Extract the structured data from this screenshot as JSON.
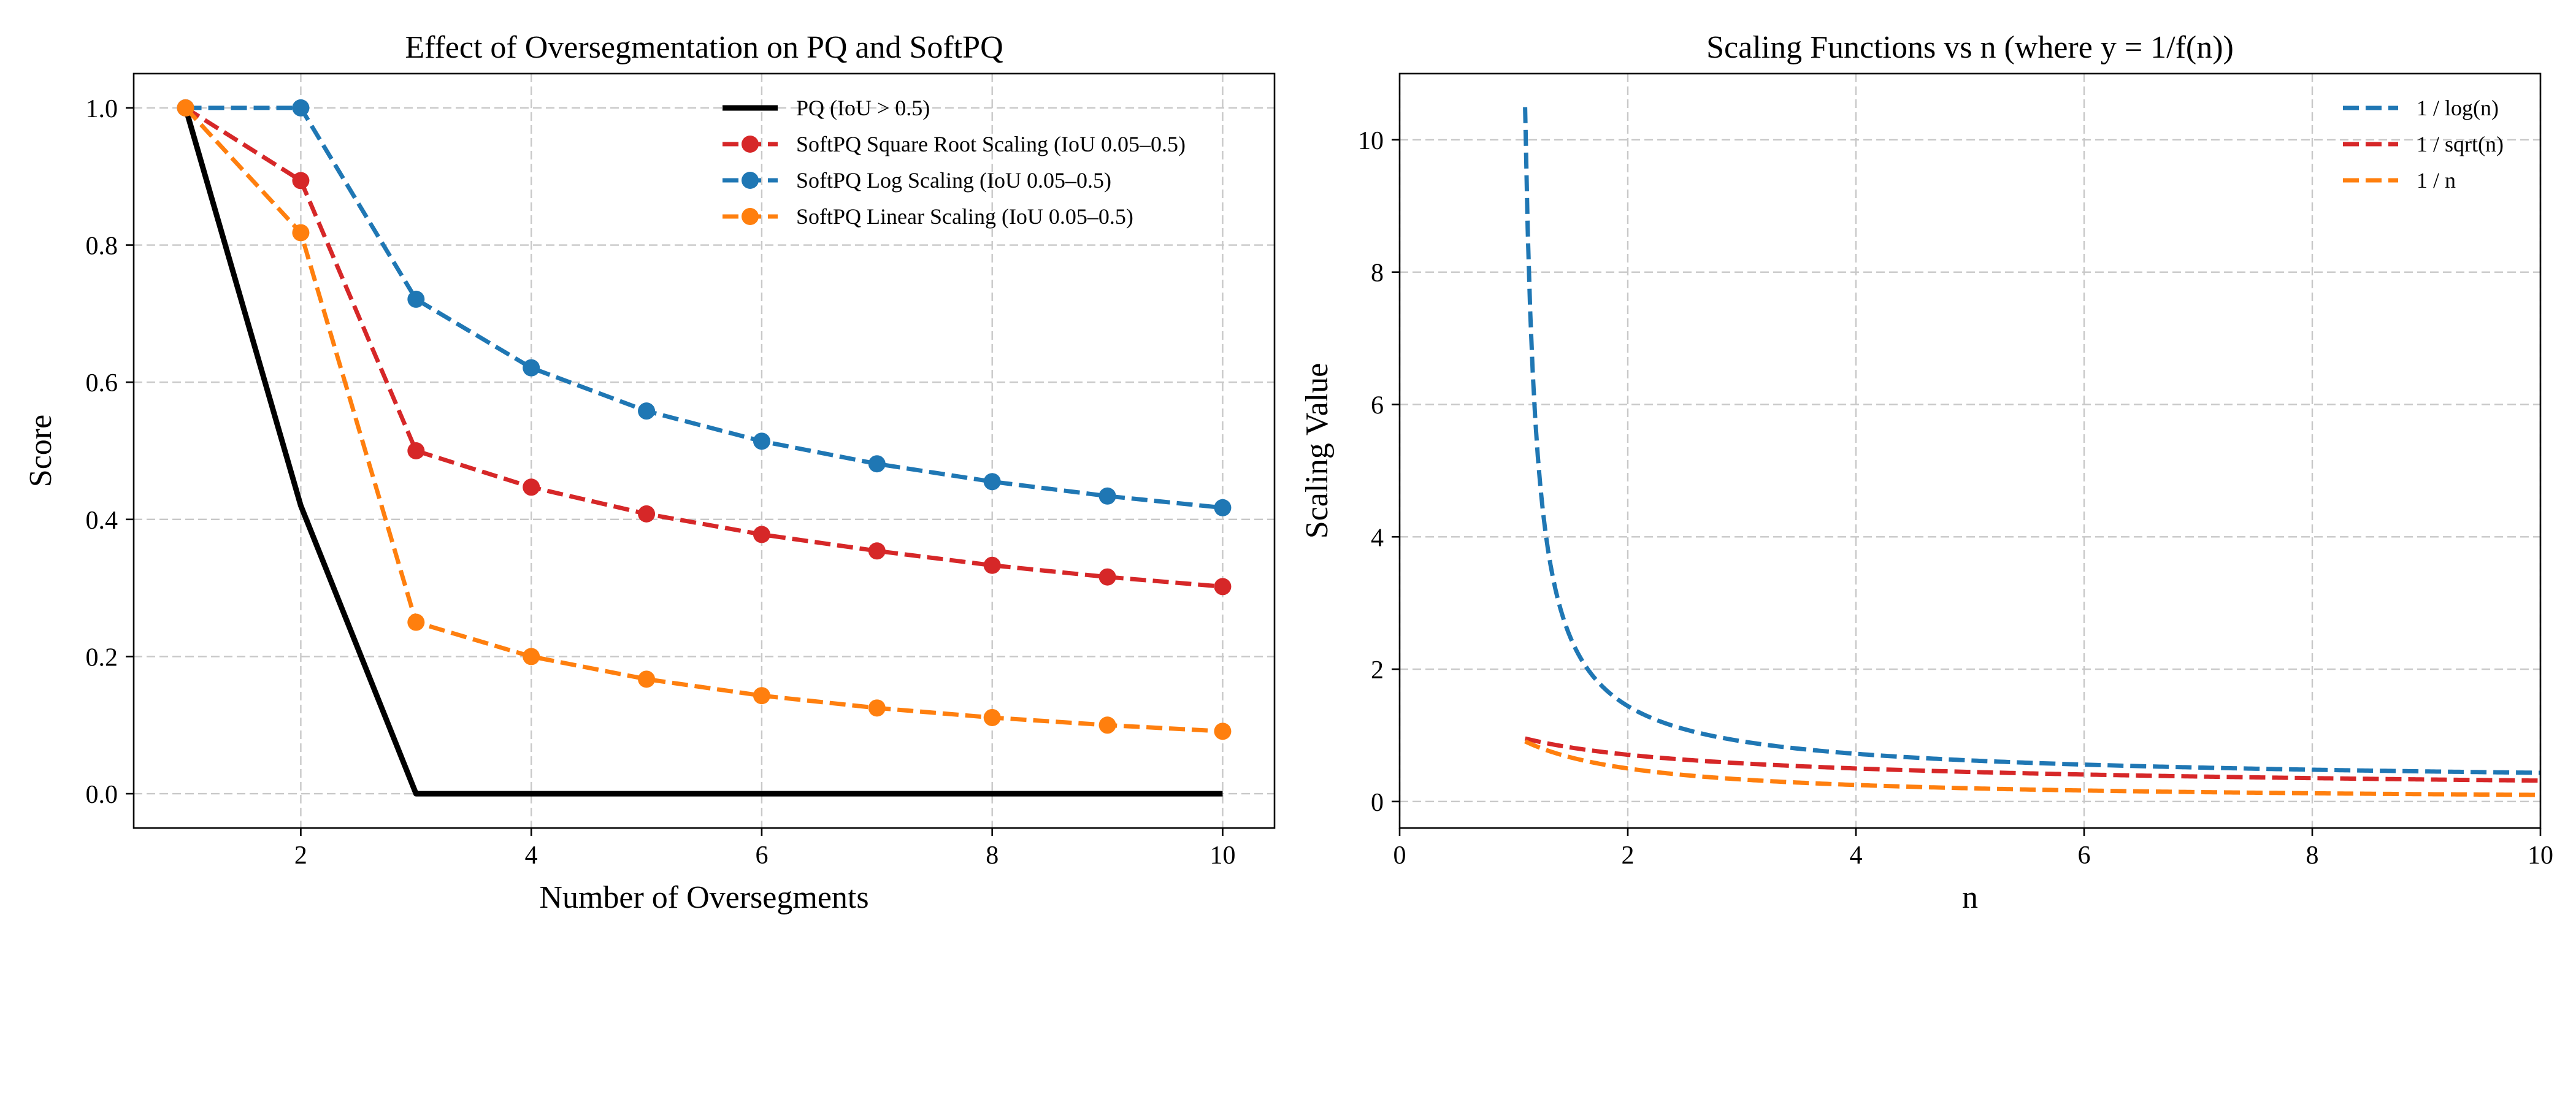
{
  "chart_data": [
    {
      "type": "line",
      "title": "Effect of Oversegmentation on PQ and SoftPQ",
      "xlabel": "Number of Oversegments",
      "ylabel": "Score",
      "xlim": [
        0.55,
        10.45
      ],
      "ylim": [
        -0.05,
        1.05
      ],
      "xticks": [
        2,
        4,
        6,
        8,
        10
      ],
      "yticks": [
        0.0,
        0.2,
        0.4,
        0.6,
        0.8,
        1.0
      ],
      "ytick_labels": [
        "0.0",
        "0.2",
        "0.4",
        "0.6",
        "0.8",
        "1.0"
      ],
      "grid": true,
      "legend_position": "upper-right",
      "x": [
        1,
        2,
        3,
        4,
        5,
        6,
        7,
        8,
        9,
        10
      ],
      "series": [
        {
          "name": "PQ (IoU > 0.5)",
          "color": "#000000",
          "dashed": false,
          "markers": false,
          "width": 9,
          "values": [
            1.0,
            0.42,
            0.0,
            0.0,
            0.0,
            0.0,
            0.0,
            0.0,
            0.0,
            0.0
          ]
        },
        {
          "name": "SoftPQ Square Root Scaling (IoU 0.05–0.5)",
          "color": "#d62728",
          "dashed": true,
          "markers": true,
          "width": 7,
          "values": [
            1.0,
            0.894,
            0.5,
            0.447,
            0.408,
            0.378,
            0.354,
            0.333,
            0.316,
            0.302
          ]
        },
        {
          "name": "SoftPQ Log Scaling (IoU 0.05–0.5)",
          "color": "#1f77b4",
          "dashed": true,
          "markers": true,
          "width": 7,
          "values": [
            1.0,
            1.0,
            0.721,
            0.621,
            0.558,
            0.514,
            0.481,
            0.455,
            0.434,
            0.417
          ]
        },
        {
          "name": "SoftPQ Linear Scaling (IoU 0.05–0.5)",
          "color": "#ff7f0e",
          "dashed": true,
          "markers": true,
          "width": 7,
          "values": [
            1.0,
            0.818,
            0.25,
            0.2,
            0.167,
            0.143,
            0.125,
            0.111,
            0.1,
            0.091
          ]
        }
      ]
    },
    {
      "type": "line",
      "title": "Scaling Functions vs n (where y = 1/f(n))",
      "xlabel": "n",
      "ylabel": "Scaling Value",
      "xlim": [
        0,
        10
      ],
      "ylim": [
        -0.4,
        11.0
      ],
      "xticks": [
        0,
        2,
        4,
        6,
        8,
        10
      ],
      "yticks": [
        0,
        2,
        4,
        6,
        8,
        10
      ],
      "grid": true,
      "legend_position": "upper-right",
      "n_range": [
        1.1,
        10
      ],
      "series": [
        {
          "name": "1 / log(n)",
          "function": "1/ln(n)",
          "color": "#1f77b4",
          "dashed": true
        },
        {
          "name": "1 / sqrt(n)",
          "function": "1/sqrt(n)",
          "color": "#d62728",
          "dashed": true
        },
        {
          "name": "1 / n",
          "function": "1/n",
          "color": "#ff7f0e",
          "dashed": true
        }
      ]
    }
  ]
}
